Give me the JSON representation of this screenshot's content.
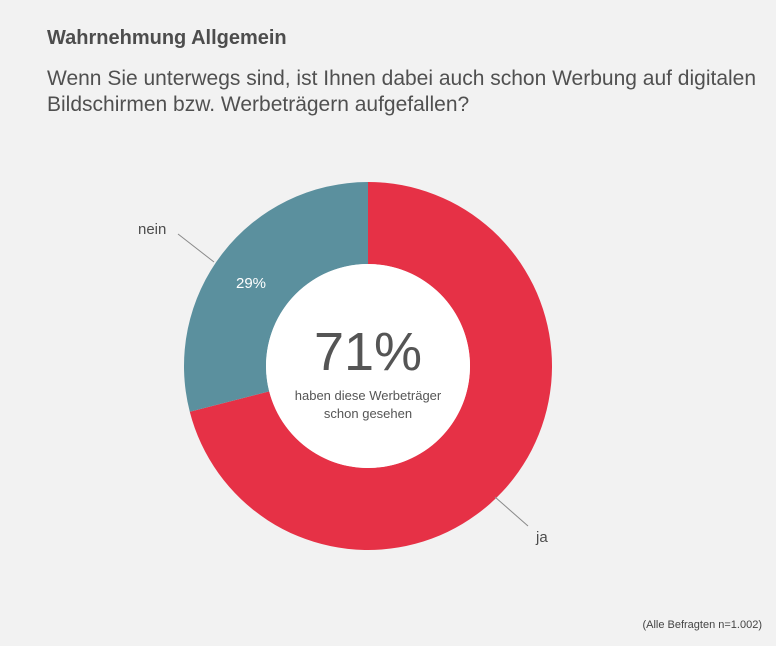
{
  "header": {
    "title": "Wahrnehmung Allgemein",
    "question": "Wenn Sie unterwegs sind, ist Ihnen dabei auch schon Werbung auf digitalen Bildschirmen bzw. Werbeträgern aufgefallen?"
  },
  "chart_data": {
    "type": "pie",
    "variant": "donut",
    "categories": [
      "ja",
      "nein"
    ],
    "values": [
      71,
      29
    ],
    "value_labels": [
      "",
      "29%"
    ],
    "colors": [
      "#e63146",
      "#5b909e"
    ],
    "center_value": "71%",
    "center_caption_line1": "haben diese Werbeträger",
    "center_caption_line2": "schon gesehen"
  },
  "footnote": "(Alle Befragten n=1.002)"
}
